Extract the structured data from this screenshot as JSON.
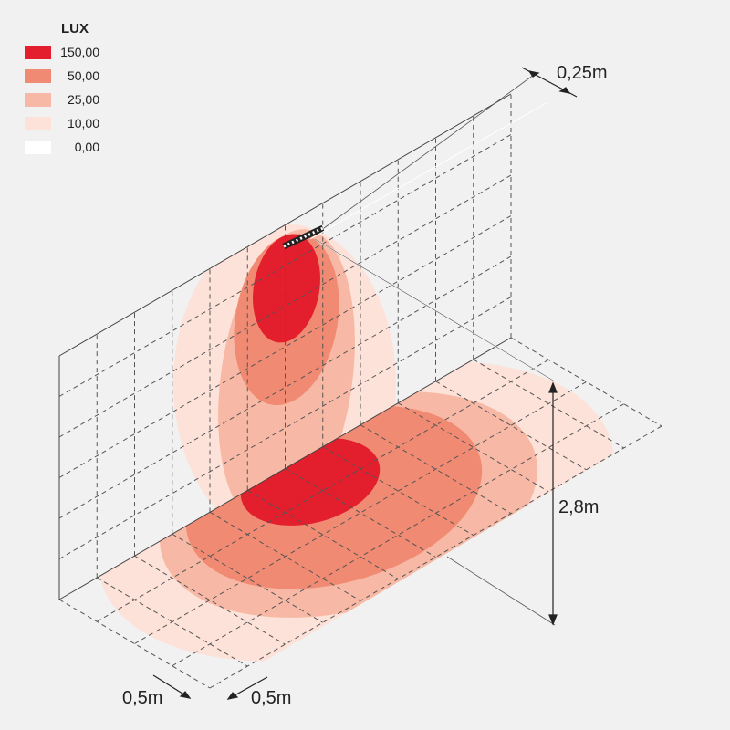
{
  "legend": {
    "title": "LUX",
    "items": [
      {
        "label": "150,00",
        "color": "#e31e2d"
      },
      {
        "label": "50,00",
        "color": "#f08a73"
      },
      {
        "label": "25,00",
        "color": "#f7b9a6"
      },
      {
        "label": "10,00",
        "color": "#fde2d9"
      },
      {
        "label": "0,00",
        "color": "#ffffff"
      }
    ]
  },
  "dimensions": {
    "offset": "0,25m",
    "height": "2,8m",
    "grid_x": "0,5m",
    "grid_y": "0,5m"
  }
}
